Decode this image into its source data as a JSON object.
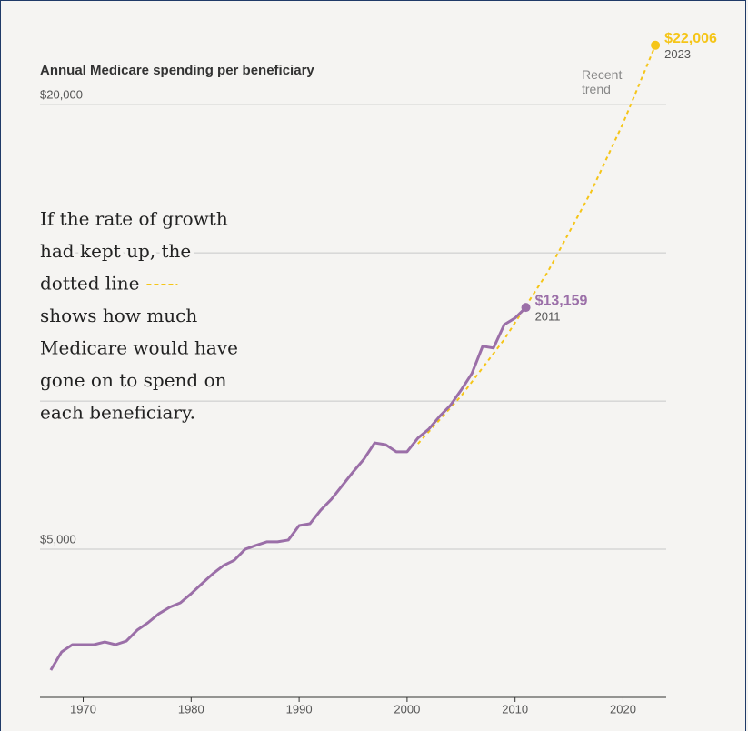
{
  "chart_data": {
    "type": "line",
    "title": "Annual Medicare spending per beneficiary",
    "annotation_lines": [
      "If the rate of growth",
      "had kept up, the",
      "dotted line",
      "shows how much",
      "Medicare would have",
      "gone on to spend on",
      "each beneficiary."
    ],
    "xlim": [
      1966,
      2024
    ],
    "xticks": [
      1970,
      1980,
      1990,
      2000,
      2010,
      2020
    ],
    "ylim": [
      0,
      22000
    ],
    "yticks": [
      {
        "value": 5000,
        "label": "$5,000"
      },
      {
        "value": 10000,
        "label": null
      },
      {
        "value": 15000,
        "label": null
      },
      {
        "value": 20000,
        "label": "$20,000"
      }
    ],
    "grid": true,
    "series": [
      {
        "color": "#9b6fa8",
        "dashed": false,
        "x": [
          1967,
          1968,
          1969,
          1970,
          1971,
          1972,
          1973,
          1974,
          1975,
          1976,
          1977,
          1978,
          1979,
          1980,
          1981,
          1982,
          1983,
          1984,
          1985,
          1986,
          1987,
          1988,
          1989,
          1990,
          1991,
          1992,
          1993,
          1994,
          1995,
          1996,
          1997,
          1998,
          1999,
          2000,
          2001,
          2002,
          2003,
          2004,
          2005,
          2006,
          2007,
          2008,
          2009,
          2010,
          2011
        ],
        "values": [
          920,
          1535,
          1780,
          1780,
          1780,
          1870,
          1780,
          1900,
          2270,
          2520,
          2820,
          3040,
          3190,
          3500,
          3840,
          4170,
          4450,
          4630,
          5000,
          5130,
          5250,
          5250,
          5310,
          5800,
          5860,
          6320,
          6690,
          7150,
          7610,
          8040,
          8590,
          8530,
          8290,
          8290,
          8750,
          9050,
          9480,
          9850,
          10370,
          10930,
          11850,
          11790,
          12580,
          12800,
          13159
        ],
        "value_labels": [
          null,
          null,
          null,
          null,
          null,
          null,
          null,
          null,
          null,
          null,
          null,
          null,
          null,
          null,
          null,
          null,
          null,
          null,
          null,
          null,
          null,
          null,
          null,
          null,
          null,
          null,
          null,
          null,
          null,
          null,
          null,
          null,
          null,
          null,
          null,
          null,
          null,
          null,
          null,
          null,
          null,
          null,
          null,
          null,
          "$13,159"
        ]
      },
      {
        "name": "Recent trend",
        "color": "#f5c518",
        "dashed": true,
        "x": [
          2001,
          2005,
          2009,
          2013,
          2017,
          2020,
          2023
        ],
        "values": [
          8560,
          10170,
          12080,
          14340,
          17030,
          19370,
          22006
        ],
        "value_labels": [
          null,
          null,
          null,
          null,
          null,
          null,
          "$22,006"
        ]
      }
    ]
  }
}
